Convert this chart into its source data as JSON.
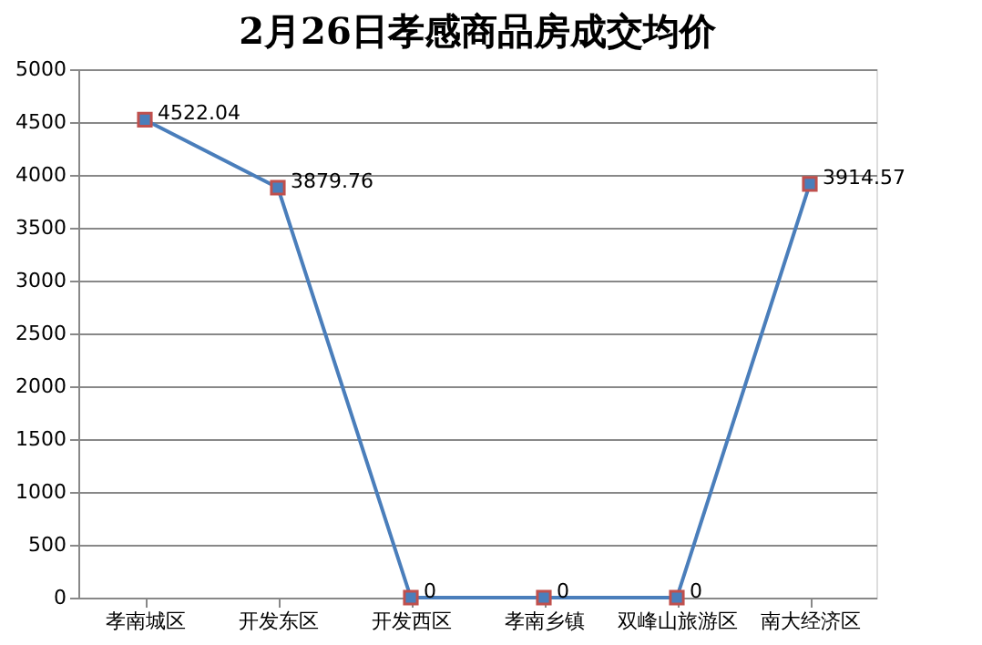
{
  "chart_data": {
    "type": "line",
    "title": "2月26日孝感商品房成交均价",
    "categories": [
      "孝南城区",
      "开发东区",
      "开发西区",
      "孝南乡镇",
      "双峰山旅游区",
      "南大经济区"
    ],
    "series": [
      {
        "color": "#4a7ebb",
        "values": [
          4522.04,
          3879.76,
          0,
          0,
          0,
          3914.57
        ]
      }
    ],
    "ylim": [
      0,
      5000
    ],
    "yticks": [
      0,
      500,
      1000,
      1500,
      2000,
      2500,
      3000,
      3500,
      4000,
      4500,
      5000
    ],
    "grid": "y",
    "marker": "square",
    "line_style": "solid",
    "data_labels": true
  }
}
